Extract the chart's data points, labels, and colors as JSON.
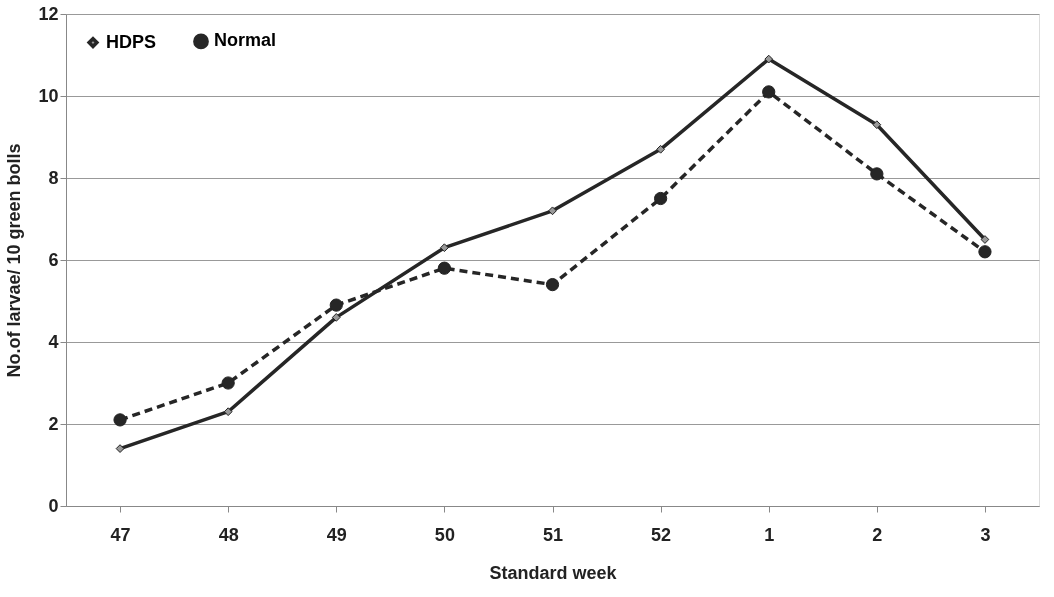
{
  "chart_data": {
    "type": "line",
    "xlabel": "Standard week",
    "ylabel": "No.of larvae/ 10 green bolls",
    "categories": [
      "47",
      "48",
      "49",
      "50",
      "51",
      "52",
      "1",
      "2",
      "3"
    ],
    "series": [
      {
        "name": "HDPS",
        "color": "#262626",
        "marker": "diamond",
        "line_style": "solid",
        "values": [
          1.4,
          2.3,
          4.6,
          6.3,
          7.2,
          8.7,
          10.9,
          9.3,
          6.5
        ]
      },
      {
        "name": "Normal",
        "color": "#262626",
        "marker": "circle",
        "line_style": "dashed",
        "values": [
          2.1,
          3.0,
          4.9,
          5.8,
          5.4,
          7.5,
          10.1,
          8.1,
          6.2
        ]
      }
    ],
    "ylim": [
      0,
      12
    ],
    "yticks": [
      0,
      2,
      4,
      6,
      8,
      10,
      12
    ],
    "grid": "y",
    "legend": "top left"
  }
}
